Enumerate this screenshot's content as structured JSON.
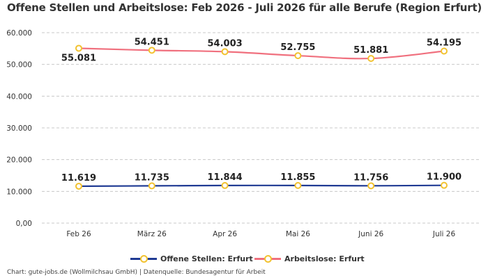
{
  "title": "Offene Stellen und Arbeitslose: Feb 2026 - Juli 2026 für alle Berufe (Region Erfurt)",
  "footer": "Chart: gute-jobs.de (Wollmilchsau GmbH) | Datenquelle: Bundesagentur für Arbeit",
  "chart_data": {
    "type": "line",
    "categories": [
      "Feb 26",
      "März 26",
      "Apr 26",
      "Mai 26",
      "Juni 26",
      "Juli 26"
    ],
    "ylim": [
      0,
      60000
    ],
    "yticks": [
      0,
      10000,
      20000,
      30000,
      40000,
      50000,
      60000
    ],
    "ytick_labels": [
      "0,00",
      "10.000",
      "20.000",
      "30.000",
      "40.000",
      "50.000",
      "60.000"
    ],
    "grid": true,
    "legend_position": "bottom",
    "marker_color": "#f2c230",
    "series": [
      {
        "name": "Offene Stellen: Erfurt",
        "color": "#1f3a93",
        "values": [
          11619,
          11735,
          11844,
          11855,
          11756,
          11900
        ],
        "labels": [
          "11.619",
          "11.735",
          "11.844",
          "11.855",
          "11.756",
          "11.900"
        ]
      },
      {
        "name": "Arbeitslose: Erfurt",
        "color": "#f0707e",
        "values": [
          55081,
          54451,
          54003,
          52755,
          51881,
          54195
        ],
        "labels": [
          "55.081",
          "54.451",
          "54.003",
          "52.755",
          "51.881",
          "54.195"
        ]
      }
    ]
  }
}
